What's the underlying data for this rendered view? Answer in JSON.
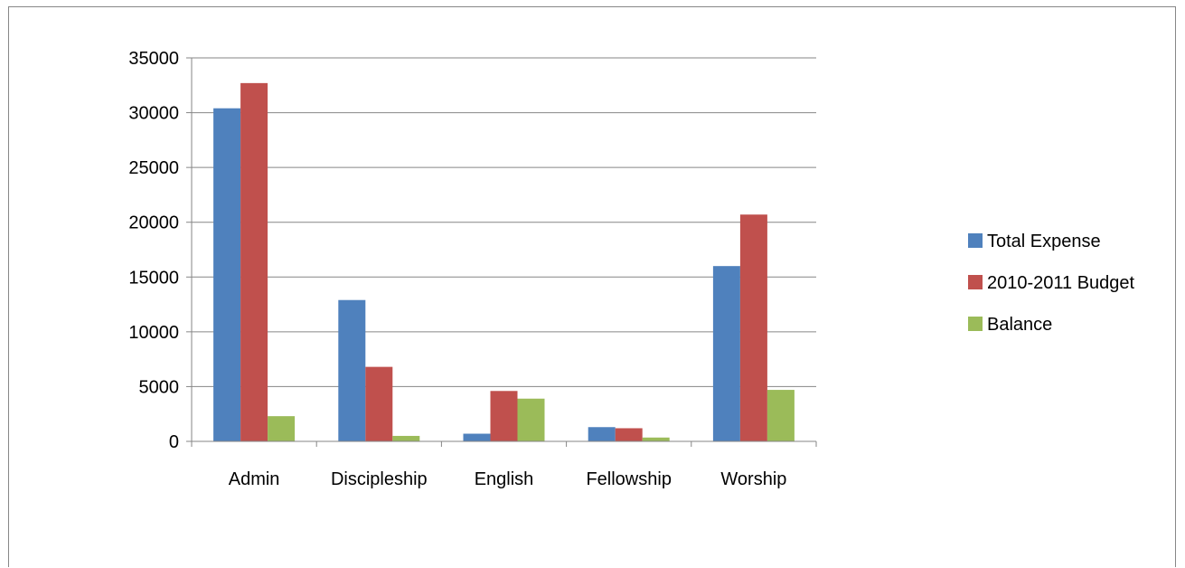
{
  "chart_data": {
    "type": "bar",
    "title": "",
    "xlabel": "",
    "ylabel": "",
    "categories": [
      "Admin",
      "Discipleship",
      "English",
      "Fellowship",
      "Worship"
    ],
    "series": [
      {
        "name": "Total Expense",
        "color": "#4f81bd",
        "values": [
          30400,
          12900,
          700,
          1300,
          16000
        ]
      },
      {
        "name": "2010-2011 Budget",
        "color": "#c0504d",
        "values": [
          32700,
          6800,
          4600,
          1200,
          20700
        ]
      },
      {
        "name": "Balance",
        "color": "#9bbb59",
        "values": [
          2300,
          500,
          3900,
          350,
          4700
        ]
      }
    ],
    "ylim": [
      0,
      35000
    ],
    "yticks": [
      0,
      5000,
      10000,
      15000,
      20000,
      25000,
      30000,
      35000
    ],
    "grid": true,
    "legend_position": "right"
  }
}
